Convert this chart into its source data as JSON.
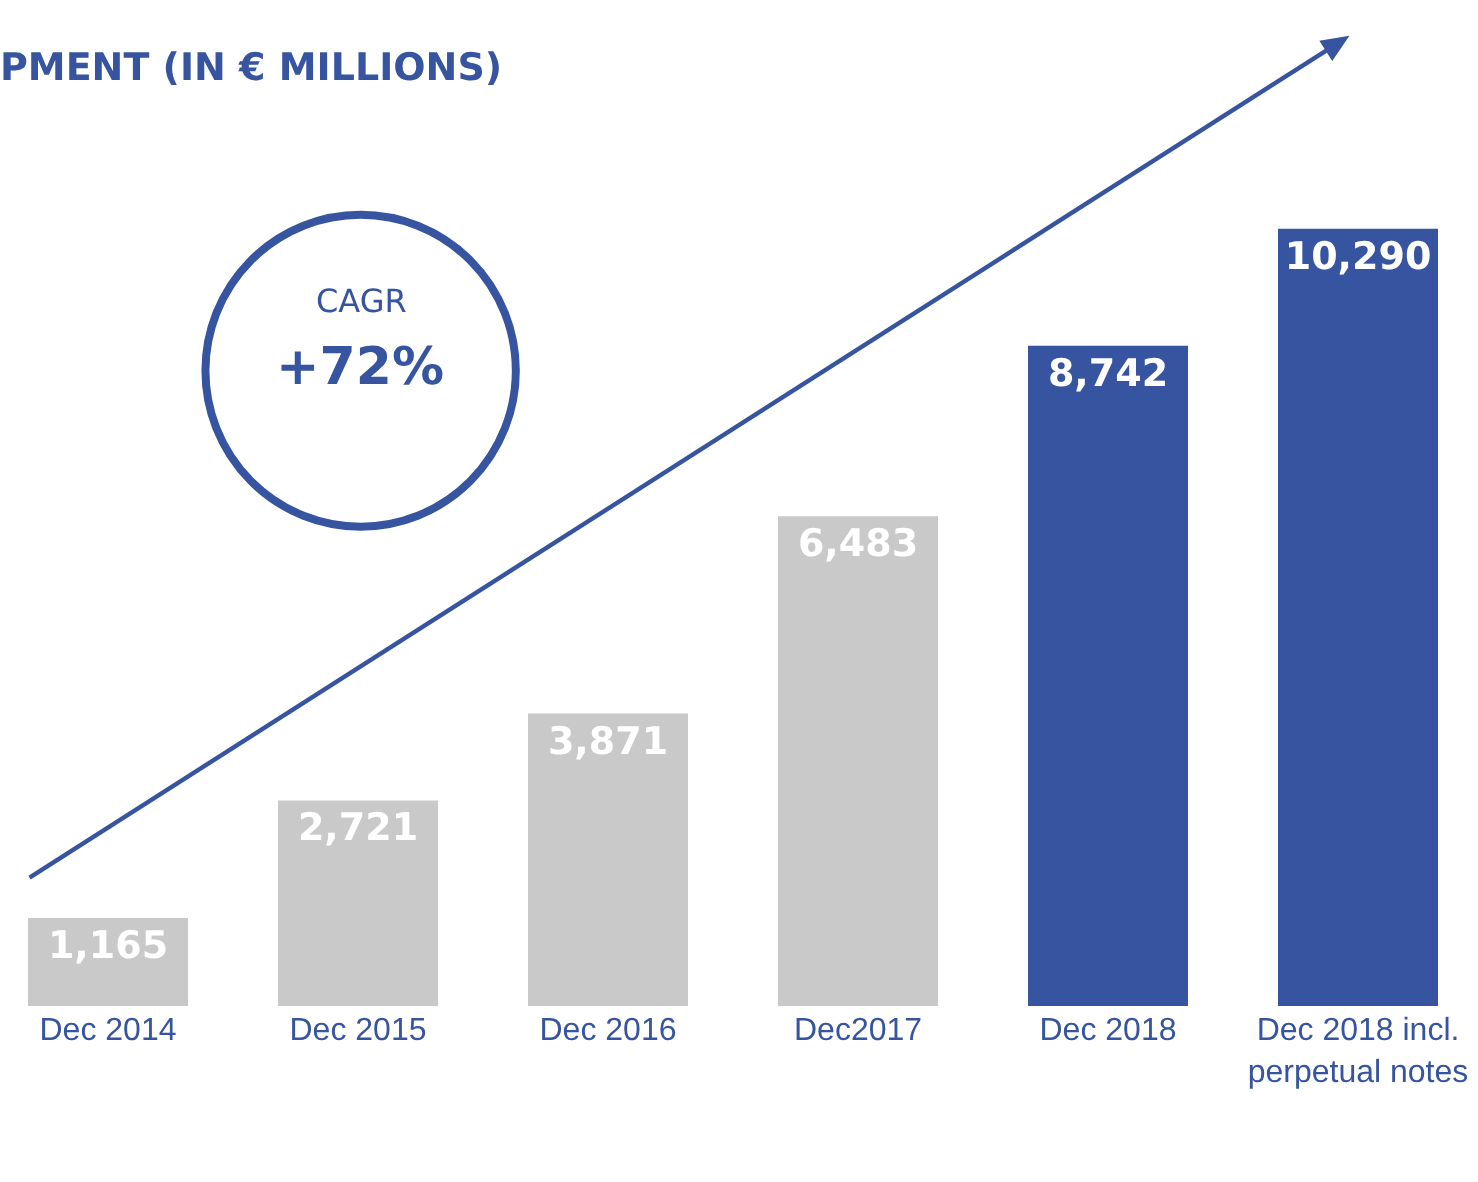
{
  "chart_data": {
    "type": "bar",
    "title": "PMENT (IN € MILLIONS)",
    "categories": [
      "Dec 2014",
      "Dec 2015",
      "Dec 2016",
      "Dec2017",
      "Dec 2018",
      "Dec 2018 incl. perpetual notes"
    ],
    "values": [
      1165,
      2721,
      3871,
      6483,
      8742,
      10290
    ],
    "colors": [
      "#c8c9c8",
      "#c8c9c8",
      "#c8c9c8",
      "#c8c9c8",
      "#36549f",
      "#36549f"
    ],
    "value_labels": [
      "1,165",
      "2,721",
      "3,871",
      "6,483",
      "8,742",
      "10,290"
    ],
    "annotations": [
      "CAGR",
      "+72%"
    ],
    "legend": false
  }
}
